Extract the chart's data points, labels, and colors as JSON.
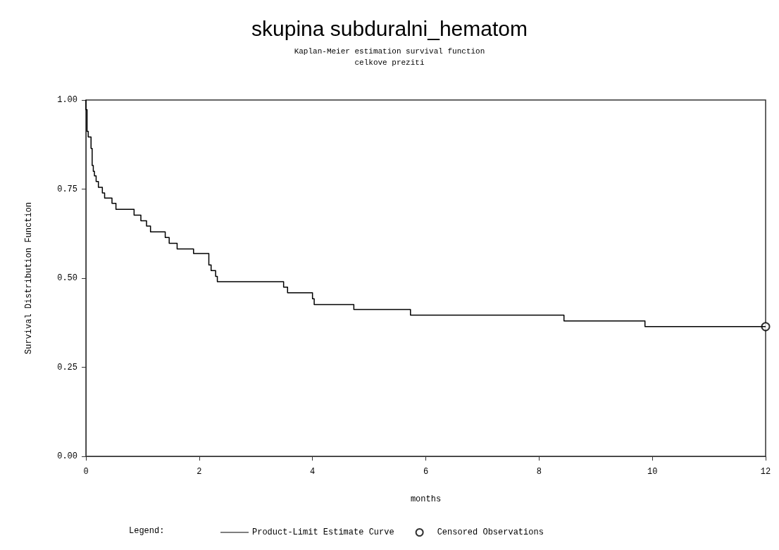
{
  "chart_data": {
    "type": "step",
    "title": "skupina subduralni_hematom",
    "subtitle": "Kaplan-Meier estimation survival function\ncelkove preziti",
    "xlabel": "months",
    "ylabel": "Survival Distribution Function",
    "legend_title": "Legend:",
    "xlim": [
      0,
      12
    ],
    "xticks": [
      0,
      2,
      4,
      6,
      8,
      10,
      12
    ],
    "ylim": [
      0,
      1
    ],
    "yticks": [
      {
        "value": 0,
        "label": "0.00"
      },
      {
        "value": 0.25,
        "label": "0.25"
      },
      {
        "value": 0.5,
        "label": "0.50"
      },
      {
        "value": 0.75,
        "label": "0.75"
      },
      {
        "value": 1,
        "label": "1.00"
      }
    ],
    "grid": false,
    "legend": "bottom",
    "series": [
      {
        "name": "Product-Limit Estimate Curve",
        "color": "#000000",
        "marker": "none",
        "x": [
          0,
          0,
          0.02,
          0.04,
          0.09,
          0.11,
          0.13,
          0.15,
          0.18,
          0.22,
          0.29,
          0.33,
          0.46,
          0.53,
          0.85,
          0.97,
          1.07,
          1.14,
          1.4,
          1.47,
          1.61,
          1.9,
          2.17,
          2.21,
          2.29,
          2.32,
          3.49,
          3.56,
          4.0,
          4.03,
          4.73,
          5.73,
          8.44,
          9.87,
          12
        ],
        "values": [
          1.0,
          0.973,
          0.912,
          0.896,
          0.864,
          0.816,
          0.8,
          0.787,
          0.771,
          0.755,
          0.739,
          0.725,
          0.71,
          0.693,
          0.677,
          0.661,
          0.646,
          0.63,
          0.614,
          0.598,
          0.582,
          0.569,
          0.537,
          0.521,
          0.505,
          0.49,
          0.475,
          0.459,
          0.442,
          0.426,
          0.412,
          0.396,
          0.38,
          0.364,
          0.364
        ]
      },
      {
        "name": "Censored Observations",
        "type": "scatter",
        "color": "#000000",
        "marker": "circle",
        "x": [
          12
        ],
        "values": [
          0.364
        ]
      }
    ]
  }
}
